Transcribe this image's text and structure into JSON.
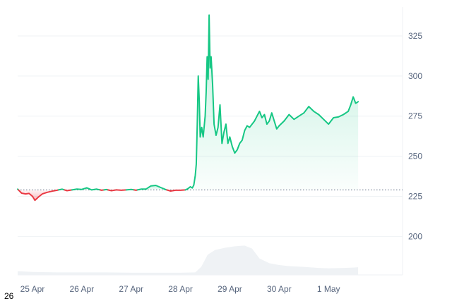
{
  "corner_label": "26",
  "chart_data": {
    "type": "area",
    "x_ticks": [
      "25 Apr",
      "26 Apr",
      "27 Apr",
      "28 Apr",
      "29 Apr",
      "30 Apr",
      "1 May"
    ],
    "y_ticks": [
      200,
      225,
      250,
      275,
      300,
      325
    ],
    "ylim": [
      176,
      343
    ],
    "x_range": [
      24.7,
      32.5
    ],
    "baseline": 229,
    "grid": true,
    "y_axis_position": "right",
    "colors": {
      "up": "#16c784",
      "down": "#ea3943",
      "volume": "#eff2f5",
      "grid": "#eff2f5",
      "text": "#58667e"
    },
    "series": [
      {
        "values": [
          [
            24.7,
            229.5
          ],
          [
            24.78,
            227.0
          ],
          [
            24.86,
            226.5
          ],
          [
            24.93,
            226.8
          ],
          [
            25.0,
            225.0
          ],
          [
            25.05,
            222.5
          ],
          [
            25.12,
            224.5
          ],
          [
            25.2,
            226.5
          ],
          [
            25.3,
            227.5
          ],
          [
            25.4,
            228.2
          ],
          [
            25.5,
            228.8
          ],
          [
            25.6,
            229.5
          ],
          [
            25.7,
            228.5
          ],
          [
            25.8,
            229.0
          ],
          [
            25.9,
            229.5
          ],
          [
            26.0,
            229.3
          ],
          [
            26.1,
            230.3
          ],
          [
            26.2,
            229.0
          ],
          [
            26.3,
            229.5
          ],
          [
            26.4,
            228.8
          ],
          [
            26.5,
            229.2
          ],
          [
            26.6,
            228.5
          ],
          [
            26.7,
            229.0
          ],
          [
            26.8,
            228.8
          ],
          [
            26.9,
            229.0
          ],
          [
            27.0,
            229.3
          ],
          [
            27.1,
            228.8
          ],
          [
            27.2,
            229.5
          ],
          [
            27.3,
            229.5
          ],
          [
            27.4,
            231.5
          ],
          [
            27.5,
            231.8
          ],
          [
            27.6,
            230.5
          ],
          [
            27.7,
            229.2
          ],
          [
            27.8,
            228.3
          ],
          [
            27.9,
            228.8
          ],
          [
            28.0,
            228.8
          ],
          [
            28.1,
            229.0
          ],
          [
            28.15,
            229.8
          ],
          [
            28.2,
            231.0
          ],
          [
            28.24,
            230.2
          ],
          [
            28.27,
            232.0
          ],
          [
            28.3,
            238.0
          ],
          [
            28.32,
            245.0
          ],
          [
            28.34,
            270.0
          ],
          [
            28.36,
            300.0
          ],
          [
            28.38,
            285.0
          ],
          [
            28.4,
            262.0
          ],
          [
            28.43,
            268.0
          ],
          [
            28.46,
            262.0
          ],
          [
            28.5,
            275.0
          ],
          [
            28.52,
            290.0
          ],
          [
            28.54,
            312.0
          ],
          [
            28.56,
            298.0
          ],
          [
            28.58,
            338.0
          ],
          [
            28.6,
            305.0
          ],
          [
            28.62,
            312.0
          ],
          [
            28.65,
            295.0
          ],
          [
            28.68,
            270.0
          ],
          [
            28.72,
            263.0
          ],
          [
            28.76,
            268.0
          ],
          [
            28.8,
            282.0
          ],
          [
            28.84,
            258.0
          ],
          [
            28.88,
            265.0
          ],
          [
            28.92,
            270.0
          ],
          [
            28.96,
            258.0
          ],
          [
            29.0,
            262.0
          ],
          [
            29.05,
            256.0
          ],
          [
            29.1,
            252.0
          ],
          [
            29.15,
            254.0
          ],
          [
            29.2,
            258.0
          ],
          [
            29.25,
            260.0
          ],
          [
            29.3,
            266.0
          ],
          [
            29.35,
            269.0
          ],
          [
            29.4,
            268.0
          ],
          [
            29.5,
            272.0
          ],
          [
            29.55,
            275.0
          ],
          [
            29.6,
            278.0
          ],
          [
            29.65,
            274.0
          ],
          [
            29.7,
            276.0
          ],
          [
            29.75,
            270.0
          ],
          [
            29.8,
            272.0
          ],
          [
            29.85,
            277.0
          ],
          [
            29.9,
            272.0
          ],
          [
            29.95,
            267.0
          ],
          [
            30.0,
            269.0
          ],
          [
            30.1,
            272.0
          ],
          [
            30.2,
            276.0
          ],
          [
            30.3,
            273.0
          ],
          [
            30.4,
            275.0
          ],
          [
            30.5,
            277.0
          ],
          [
            30.6,
            281.0
          ],
          [
            30.7,
            278.0
          ],
          [
            30.8,
            276.0
          ],
          [
            30.9,
            273.0
          ],
          [
            31.0,
            270.0
          ],
          [
            31.1,
            274.0
          ],
          [
            31.2,
            274.5
          ],
          [
            31.3,
            276.0
          ],
          [
            31.4,
            278.0
          ],
          [
            31.45,
            282.0
          ],
          [
            31.5,
            287.0
          ],
          [
            31.55,
            283.0
          ],
          [
            31.6,
            284.0
          ]
        ]
      },
      {
        "name": "volume",
        "values": [
          [
            24.7,
            0.1
          ],
          [
            25.0,
            0.08
          ],
          [
            25.5,
            0.07
          ],
          [
            26.0,
            0.07
          ],
          [
            26.5,
            0.07
          ],
          [
            27.0,
            0.06
          ],
          [
            27.5,
            0.06
          ],
          [
            28.0,
            0.06
          ],
          [
            28.3,
            0.07
          ],
          [
            28.42,
            0.22
          ],
          [
            28.55,
            0.55
          ],
          [
            28.7,
            0.68
          ],
          [
            28.9,
            0.74
          ],
          [
            29.1,
            0.78
          ],
          [
            29.3,
            0.8
          ],
          [
            29.45,
            0.72
          ],
          [
            29.6,
            0.45
          ],
          [
            29.8,
            0.32
          ],
          [
            30.0,
            0.27
          ],
          [
            30.2,
            0.24
          ],
          [
            30.5,
            0.22
          ],
          [
            30.8,
            0.19
          ],
          [
            31.0,
            0.18
          ],
          [
            31.3,
            0.19
          ],
          [
            31.5,
            0.2
          ],
          [
            31.6,
            0.21
          ]
        ]
      }
    ]
  }
}
